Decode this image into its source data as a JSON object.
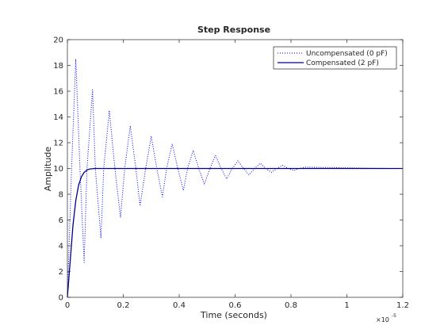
{
  "chart_data": {
    "type": "line",
    "title": "Step Response",
    "xlabel": "Time (seconds)",
    "ylabel": "Amplitude",
    "xlim": [
      0,
      1.2
    ],
    "ylim": [
      0,
      20
    ],
    "x_multiplier_label": "×10",
    "x_multiplier_exponent": "-5",
    "xticks": [
      "0",
      "0.2",
      "0.4",
      "0.6",
      "0.8",
      "1",
      "1.2"
    ],
    "yticks": [
      "0",
      "2",
      "4",
      "6",
      "8",
      "10",
      "12",
      "14",
      "16",
      "18",
      "20"
    ],
    "grid": false,
    "legend_position": "top-right",
    "series": [
      {
        "name": "Uncompensated (0 pF)",
        "color": "#0000ff",
        "style": "dotted",
        "x": [
          0,
          0.015,
          0.03,
          0.045,
          0.06,
          0.07,
          0.09,
          0.1,
          0.12,
          0.13,
          0.15,
          0.17,
          0.19,
          0.205,
          0.225,
          0.245,
          0.26,
          0.28,
          0.3,
          0.32,
          0.34,
          0.355,
          0.375,
          0.395,
          0.415,
          0.43,
          0.45,
          0.47,
          0.49,
          0.51,
          0.53,
          0.55,
          0.57,
          0.59,
          0.61,
          0.63,
          0.65,
          0.67,
          0.69,
          0.71,
          0.73,
          0.75,
          0.77,
          0.79,
          0.81,
          0.83,
          0.85,
          1.15
        ],
        "values": [
          0,
          10,
          18.5,
          10,
          2.7,
          10,
          16.1,
          10,
          4.6,
          10,
          14.5,
          10,
          6.2,
          10,
          13.3,
          10,
          7.1,
          10,
          12.5,
          10,
          7.8,
          10,
          11.9,
          10,
          8.3,
          10,
          11.4,
          10,
          8.8,
          10,
          11.0,
          10,
          9.2,
          10,
          10.6,
          10,
          9.5,
          10,
          10.4,
          10,
          9.7,
          10,
          10.25,
          10,
          9.85,
          10,
          10.1,
          10
        ]
      },
      {
        "name": "Compensated (2 pF)",
        "color": "#00008b",
        "style": "solid",
        "x": [
          0,
          0.01,
          0.02,
          0.03,
          0.04,
          0.05,
          0.06,
          0.07,
          0.08,
          0.1,
          0.15,
          0.3,
          0.6,
          1.2
        ],
        "values": [
          0,
          2.8,
          5.6,
          7.5,
          8.7,
          9.35,
          9.7,
          9.88,
          9.96,
          10.0,
          10.0,
          10.0,
          10.0,
          10.0
        ]
      }
    ]
  }
}
